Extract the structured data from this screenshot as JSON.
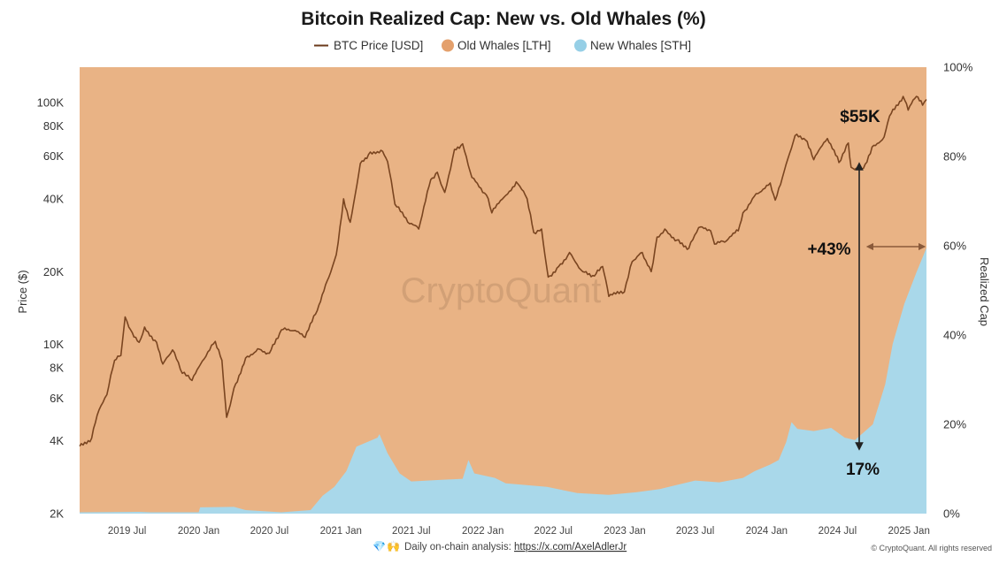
{
  "chart_data": {
    "type": "area",
    "title": "Bitcoin Realized Cap: New vs. Old Whales (%)",
    "legend": [
      "BTC Price [USD]",
      "Old Whales [LTH]",
      "New Whales [STH]"
    ],
    "legend_placement": "top-center",
    "y_left_label": "Price ($)",
    "y_left_scale": "log",
    "y_left_range": [
      2000,
      140000
    ],
    "y_left_ticks": [
      {
        "label": "2K",
        "value": 2000
      },
      {
        "label": "4K",
        "value": 4000
      },
      {
        "label": "6K",
        "value": 6000
      },
      {
        "label": "8K",
        "value": 8000
      },
      {
        "label": "10K",
        "value": 10000
      },
      {
        "label": "20K",
        "value": 20000
      },
      {
        "label": "40K",
        "value": 40000
      },
      {
        "label": "60K",
        "value": 60000
      },
      {
        "label": "80K",
        "value": 80000
      },
      {
        "label": "100K",
        "value": 100000
      }
    ],
    "y_right_label": "Realized Cap",
    "y_right_range": [
      0,
      100
    ],
    "y_right_ticks": [
      "0%",
      "20%",
      "40%",
      "60%",
      "80%",
      "100%"
    ],
    "x_range": [
      "2019-03-01",
      "2025-02-15"
    ],
    "x_ticks": [
      {
        "label": "2019 Jul",
        "date": "2019-07-01"
      },
      {
        "label": "2020 Jan",
        "date": "2020-01-01"
      },
      {
        "label": "2020 Jul",
        "date": "2020-07-01"
      },
      {
        "label": "2021 Jan",
        "date": "2021-01-01"
      },
      {
        "label": "2021 Jul",
        "date": "2021-07-01"
      },
      {
        "label": "2022 Jan",
        "date": "2022-01-01"
      },
      {
        "label": "2022 Jul",
        "date": "2022-07-01"
      },
      {
        "label": "2023 Jan",
        "date": "2023-01-01"
      },
      {
        "label": "2023 Jul",
        "date": "2023-07-01"
      },
      {
        "label": "2024 Jan",
        "date": "2024-01-01"
      },
      {
        "label": "2024 Jul",
        "date": "2024-07-01"
      },
      {
        "label": "2025 Jan",
        "date": "2025-01-01"
      }
    ],
    "grid": false,
    "colors": {
      "price": "#7a4520",
      "old_whales": "#e9b385",
      "new_whales": "#a9d8ea"
    },
    "series": [
      {
        "name": "BTC Price [USD]",
        "kind": "line",
        "axis": "left",
        "points": [
          [
            "2019-03-01",
            3800
          ],
          [
            "2019-04-01",
            4100
          ],
          [
            "2019-04-15",
            5100
          ],
          [
            "2019-05-10",
            6200
          ],
          [
            "2019-05-30",
            8600
          ],
          [
            "2019-06-15",
            9000
          ],
          [
            "2019-06-26",
            13000
          ],
          [
            "2019-07-10",
            11500
          ],
          [
            "2019-08-01",
            10200
          ],
          [
            "2019-08-15",
            11800
          ],
          [
            "2019-09-15",
            10200
          ],
          [
            "2019-10-01",
            8300
          ],
          [
            "2019-10-26",
            9500
          ],
          [
            "2019-11-20",
            7600
          ],
          [
            "2019-12-15",
            7100
          ],
          [
            "2020-01-15",
            8700
          ],
          [
            "2020-02-13",
            10300
          ],
          [
            "2020-03-01",
            8600
          ],
          [
            "2020-03-13",
            5000
          ],
          [
            "2020-04-01",
            6600
          ],
          [
            "2020-05-01",
            8800
          ],
          [
            "2020-06-01",
            9600
          ],
          [
            "2020-07-01",
            9200
          ],
          [
            "2020-08-01",
            11500
          ],
          [
            "2020-09-01",
            11400
          ],
          [
            "2020-10-01",
            10700
          ],
          [
            "2020-11-01",
            13800
          ],
          [
            "2020-12-01",
            19000
          ],
          [
            "2020-12-20",
            23500
          ],
          [
            "2021-01-08",
            40000
          ],
          [
            "2021-01-25",
            32000
          ],
          [
            "2021-02-20",
            56000
          ],
          [
            "2021-03-13",
            61000
          ],
          [
            "2021-04-14",
            63500
          ],
          [
            "2021-05-01",
            57000
          ],
          [
            "2021-05-20",
            38000
          ],
          [
            "2021-06-22",
            32000
          ],
          [
            "2021-07-20",
            30000
          ],
          [
            "2021-08-20",
            48000
          ],
          [
            "2021-09-06",
            51500
          ],
          [
            "2021-09-25",
            42500
          ],
          [
            "2021-10-20",
            64000
          ],
          [
            "2021-11-10",
            67500
          ],
          [
            "2021-12-04",
            49000
          ],
          [
            "2022-01-10",
            41500
          ],
          [
            "2022-01-24",
            35000
          ],
          [
            "2022-03-28",
            47000
          ],
          [
            "2022-04-25",
            40000
          ],
          [
            "2022-05-12",
            29000
          ],
          [
            "2022-06-01",
            30000
          ],
          [
            "2022-06-18",
            19000
          ],
          [
            "2022-07-15",
            21000
          ],
          [
            "2022-08-12",
            24000
          ],
          [
            "2022-09-15",
            20000
          ],
          [
            "2022-10-15",
            19200
          ],
          [
            "2022-11-05",
            21000
          ],
          [
            "2022-11-21",
            15800
          ],
          [
            "2022-12-31",
            16500
          ],
          [
            "2023-01-20",
            22000
          ],
          [
            "2023-02-15",
            24000
          ],
          [
            "2023-03-10",
            20000
          ],
          [
            "2023-03-25",
            27800
          ],
          [
            "2023-04-14",
            30000
          ],
          [
            "2023-05-15",
            27000
          ],
          [
            "2023-06-15",
            25000
          ],
          [
            "2023-07-10",
            30400
          ],
          [
            "2023-08-10",
            29500
          ],
          [
            "2023-08-20",
            26000
          ],
          [
            "2023-09-15",
            26500
          ],
          [
            "2023-10-20",
            29500
          ],
          [
            "2023-11-01",
            35000
          ],
          [
            "2023-12-05",
            42000
          ],
          [
            "2024-01-10",
            46500
          ],
          [
            "2024-01-23",
            39500
          ],
          [
            "2024-02-15",
            52000
          ],
          [
            "2024-03-14",
            73000
          ],
          [
            "2024-04-10",
            70000
          ],
          [
            "2024-05-01",
            58000
          ],
          [
            "2024-06-05",
            71000
          ],
          [
            "2024-07-05",
            56500
          ],
          [
            "2024-07-29",
            68000
          ],
          [
            "2024-08-05",
            54000
          ],
          [
            "2024-09-06",
            53500
          ],
          [
            "2024-09-28",
            65500
          ],
          [
            "2024-10-29",
            72000
          ],
          [
            "2024-11-12",
            88000
          ],
          [
            "2024-12-17",
            106000
          ],
          [
            "2024-12-30",
            93000
          ],
          [
            "2025-01-20",
            106000
          ],
          [
            "2025-02-05",
            97500
          ],
          [
            "2025-02-15",
            103000
          ]
        ]
      },
      {
        "name": "New Whales [STH]",
        "kind": "area",
        "axis": "right",
        "points": [
          [
            "2019-03-01",
            0.3
          ],
          [
            "2019-08-01",
            0.4
          ],
          [
            "2019-09-01",
            0.3
          ],
          [
            "2020-01-01",
            0.3
          ],
          [
            "2020-01-05",
            1.4
          ],
          [
            "2020-04-01",
            1.5
          ],
          [
            "2020-05-01",
            0.8
          ],
          [
            "2020-08-01",
            0.3
          ],
          [
            "2020-10-15",
            0.8
          ],
          [
            "2020-11-15",
            4.0
          ],
          [
            "2020-12-15",
            6.0
          ],
          [
            "2021-01-15",
            9.5
          ],
          [
            "2021-02-10",
            15.0
          ],
          [
            "2021-04-05",
            17.0
          ],
          [
            "2021-04-10",
            17.8
          ],
          [
            "2021-05-01",
            13.5
          ],
          [
            "2021-06-01",
            9.0
          ],
          [
            "2021-07-01",
            7.2
          ],
          [
            "2021-09-01",
            7.5
          ],
          [
            "2021-11-10",
            7.8
          ],
          [
            "2021-11-25",
            12.0
          ],
          [
            "2021-12-10",
            9.0
          ],
          [
            "2022-02-01",
            8.0
          ],
          [
            "2022-03-01",
            6.8
          ],
          [
            "2022-06-15",
            6.0
          ],
          [
            "2022-09-01",
            4.6
          ],
          [
            "2022-11-21",
            4.2
          ],
          [
            "2023-02-01",
            4.8
          ],
          [
            "2023-04-01",
            5.5
          ],
          [
            "2023-07-01",
            7.4
          ],
          [
            "2023-09-01",
            7.0
          ],
          [
            "2023-11-01",
            8.0
          ],
          [
            "2023-12-01",
            9.5
          ],
          [
            "2024-01-10",
            11.0
          ],
          [
            "2024-02-01",
            12.0
          ],
          [
            "2024-02-20",
            16.0
          ],
          [
            "2024-03-05",
            20.5
          ],
          [
            "2024-03-20",
            19.0
          ],
          [
            "2024-05-01",
            18.5
          ],
          [
            "2024-06-15",
            19.2
          ],
          [
            "2024-07-20",
            17.0
          ],
          [
            "2024-08-15",
            16.5
          ],
          [
            "2024-09-30",
            20.0
          ],
          [
            "2024-11-01",
            29.0
          ],
          [
            "2024-11-20",
            38.0
          ],
          [
            "2024-12-20",
            47.0
          ],
          [
            "2025-01-20",
            54.0
          ],
          [
            "2025-02-15",
            59.5
          ]
        ]
      },
      {
        "name": "Old Whales [LTH]",
        "kind": "area",
        "axis": "right",
        "fills": "from New Whales [STH] to 100%"
      }
    ],
    "annotations": {
      "price_level": "$55K",
      "change": "+43%",
      "start_share": "17%"
    }
  },
  "watermark": "CryptoQuant",
  "footer": {
    "icons": [
      "diamond-icon",
      "raised-hands-icon"
    ],
    "text": "Daily on-chain analysis: ",
    "link": "https://x.com/AxelAdlerJr",
    "copyright": "© CryptoQuant. All rights reserved"
  }
}
